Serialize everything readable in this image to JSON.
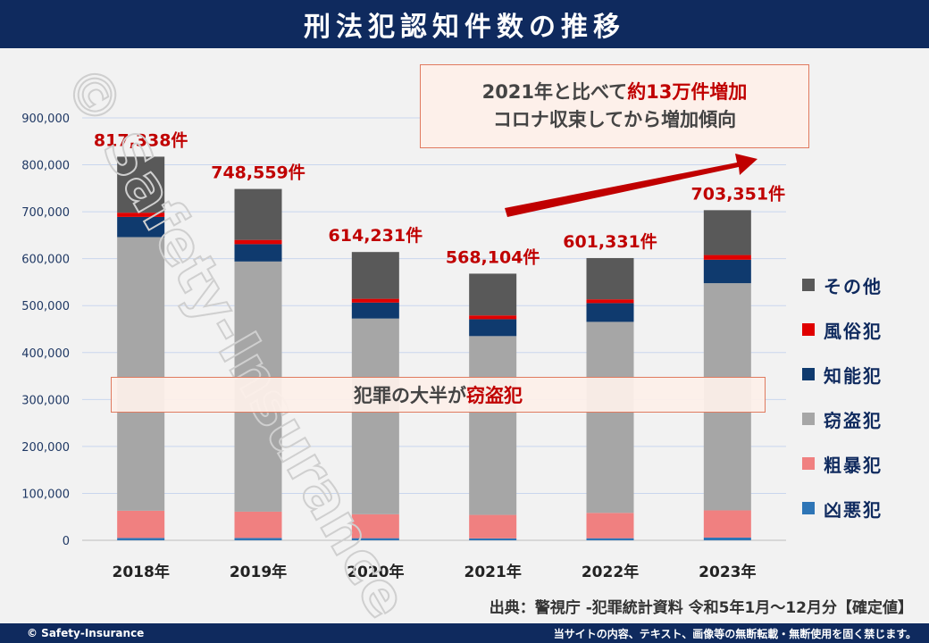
{
  "title": "刑法犯認知件数の推移",
  "footer": {
    "copyright": "© Safety-Insurance",
    "notice": "当サイトの内容、テキスト、画像等の無断転載・無断使用を固く禁じます。"
  },
  "source": "出典：警視庁 -犯罪統計資料 令和5年1月～12月分【確定値】",
  "watermark": "© Safety-Insurance",
  "callout_top": {
    "line1_prefix": "2021年と比べて",
    "line1_highlight": "約13万件増加",
    "line2": "コロナ収束してから増加傾向"
  },
  "callout_mid": {
    "prefix": "犯罪の大半が",
    "highlight": "窃盗犯"
  },
  "colors": {
    "title_bg": "#0f2a5e",
    "total_label": "#c00000",
    "arrow": "#c00000"
  },
  "chart_data": {
    "type": "bar",
    "stacked": true,
    "categories": [
      "2018年",
      "2019年",
      "2020年",
      "2021年",
      "2022年",
      "2023年"
    ],
    "ylim": [
      0,
      900000
    ],
    "yticks": [
      0,
      100000,
      200000,
      300000,
      400000,
      500000,
      600000,
      700000,
      800000,
      900000
    ],
    "ytick_labels": [
      "0",
      "100,000",
      "200,000",
      "300,000",
      "400,000",
      "500,000",
      "600,000",
      "700,000",
      "800,000",
      "900,000"
    ],
    "totals": [
      817338,
      748559,
      614231,
      568104,
      601331,
      703351
    ],
    "total_labels": [
      "817,338件",
      "748,559件",
      "614,231件",
      "568,104件",
      "601,331件",
      "703,351件"
    ],
    "series": [
      {
        "name": "凶悪犯",
        "color": "#2e75b6",
        "values": [
          5000,
          5000,
          4500,
          4100,
          4400,
          5800
        ]
      },
      {
        "name": "粗暴犯",
        "color": "#f08080",
        "values": [
          58000,
          56000,
          51000,
          50000,
          54000,
          58000
        ]
      },
      {
        "name": "窃盗犯",
        "color": "#a6a6a6",
        "values": [
          583000,
          533000,
          417000,
          381000,
          407000,
          484000
        ]
      },
      {
        "name": "知能犯",
        "color": "#0f3a6e",
        "values": [
          43000,
          37000,
          34000,
          36000,
          40000,
          50000
        ]
      },
      {
        "name": "風俗犯",
        "color": "#e00000",
        "values": [
          9000,
          9000,
          8000,
          8000,
          8000,
          10000
        ]
      },
      {
        "name": "その他",
        "color": "#595959",
        "values": [
          119338,
          108559,
          99731,
          89004,
          87931,
          95551
        ]
      }
    ],
    "legend": [
      "その他",
      "風俗犯",
      "知能犯",
      "窃盗犯",
      "粗暴犯",
      "凶悪犯"
    ],
    "legend_colors": [
      "#595959",
      "#e00000",
      "#0f3a6e",
      "#a6a6a6",
      "#f08080",
      "#2e75b6"
    ]
  }
}
